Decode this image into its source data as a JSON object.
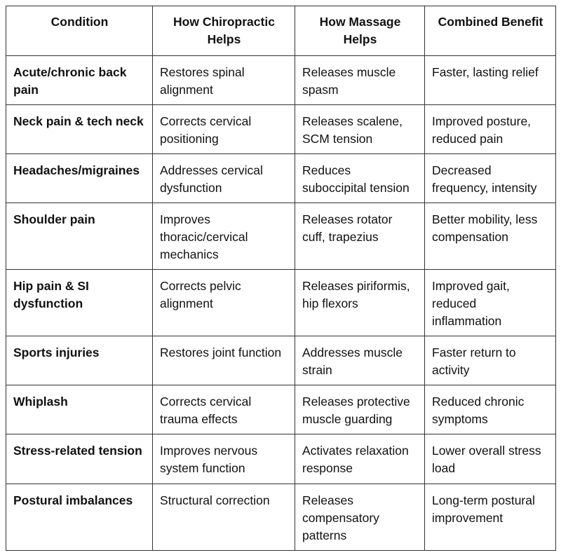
{
  "headers": [
    "Condition",
    "How Chiropractic Helps",
    "How Massage Helps",
    "Combined Benefit"
  ],
  "rows": [
    [
      "Acute/chronic back pain",
      "Restores spinal alignment",
      "Releases muscle spasm",
      "Faster, lasting relief"
    ],
    [
      "Neck pain & tech neck",
      "Corrects cervical positioning",
      "Releases scalene, SCM tension",
      "Improved posture, reduced pain"
    ],
    [
      "Headaches/migraines",
      "Addresses cervical dysfunction",
      "Reduces suboccipital tension",
      "Decreased frequency, intensity"
    ],
    [
      "Shoulder pain",
      "Improves thoracic/cervical mechanics",
      "Releases rotator cuff, trapezius",
      "Better mobility, less compensation"
    ],
    [
      "Hip pain & SI dysfunction",
      "Corrects pelvic alignment",
      "Releases piriformis, hip flexors",
      "Improved gait, reduced inflammation"
    ],
    [
      "Sports injuries",
      "Restores joint function",
      "Addresses muscle strain",
      "Faster return to activity"
    ],
    [
      "Whiplash",
      "Corrects cervical trauma effects",
      "Releases protective muscle guarding",
      "Reduced chronic symptoms"
    ],
    [
      "Stress-related tension",
      "Improves nervous system function",
      "Activates relaxation response",
      "Lower overall stress load"
    ],
    [
      "Postural imbalances",
      "Structural correction",
      "Releases compensatory patterns",
      "Long-term postural improvement"
    ]
  ]
}
